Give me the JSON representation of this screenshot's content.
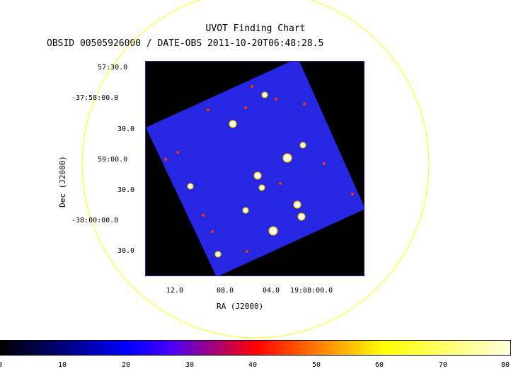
{
  "header": {
    "title": "UVOT Finding Chart",
    "subtitle": "OBSID 00505926000 / DATE-OBS 2011-10-20T06:48:28.5"
  },
  "axes": {
    "xlabel": "RA (J2000)",
    "ylabel": "Dec (J2000)",
    "dec_ticks": [
      "57:30.0",
      "-37:58:00.0",
      "30.0",
      "59:00.0",
      "30.0",
      "-38:00:00.0",
      "30.0"
    ],
    "ra_ticks": [
      "12.0",
      "08.0",
      "04.0",
      "19:08:00.0"
    ]
  },
  "colorbar": {
    "ticks": [
      "0",
      "10",
      "20",
      "30",
      "40",
      "50",
      "60",
      "70",
      "80"
    ]
  },
  "colors": {
    "circle": "#ffff00",
    "field": "#1a1ae6",
    "background": "#000000"
  }
}
